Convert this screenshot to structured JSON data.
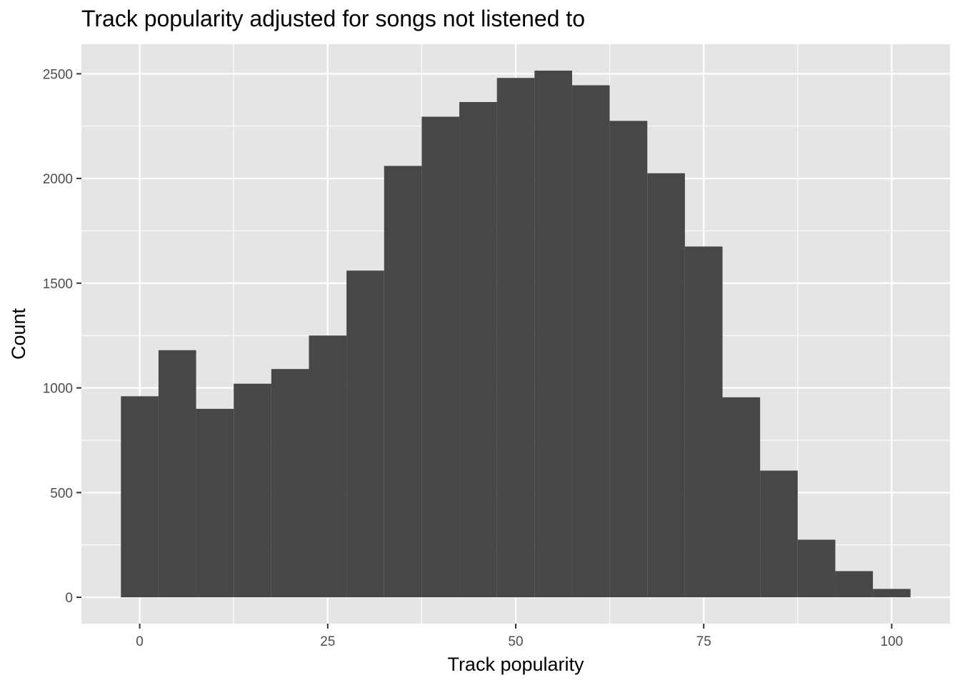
{
  "chart_data": {
    "type": "bar",
    "subtype": "histogram",
    "title": "Track popularity adjusted for songs not listened to",
    "xlabel": "Track popularity",
    "ylabel": "Count",
    "bin_width": 5,
    "bins": [
      {
        "x0": -2.5,
        "x1": 2.5,
        "count": 960
      },
      {
        "x0": 2.5,
        "x1": 7.5,
        "count": 1180
      },
      {
        "x0": 7.5,
        "x1": 12.5,
        "count": 900
      },
      {
        "x0": 12.5,
        "x1": 17.5,
        "count": 1020
      },
      {
        "x0": 17.5,
        "x1": 22.5,
        "count": 1090
      },
      {
        "x0": 22.5,
        "x1": 27.5,
        "count": 1250
      },
      {
        "x0": 27.5,
        "x1": 32.5,
        "count": 1560
      },
      {
        "x0": 32.5,
        "x1": 37.5,
        "count": 2060
      },
      {
        "x0": 37.5,
        "x1": 42.5,
        "count": 2295
      },
      {
        "x0": 42.5,
        "x1": 47.5,
        "count": 2365
      },
      {
        "x0": 47.5,
        "x1": 52.5,
        "count": 2480
      },
      {
        "x0": 52.5,
        "x1": 57.5,
        "count": 2515
      },
      {
        "x0": 57.5,
        "x1": 62.5,
        "count": 2445
      },
      {
        "x0": 62.5,
        "x1": 67.5,
        "count": 2275
      },
      {
        "x0": 67.5,
        "x1": 72.5,
        "count": 2025
      },
      {
        "x0": 72.5,
        "x1": 77.5,
        "count": 1675
      },
      {
        "x0": 77.5,
        "x1": 82.5,
        "count": 955
      },
      {
        "x0": 82.5,
        "x1": 87.5,
        "count": 605
      },
      {
        "x0": 87.5,
        "x1": 92.5,
        "count": 275
      },
      {
        "x0": 92.5,
        "x1": 97.5,
        "count": 125
      },
      {
        "x0": 97.5,
        "x1": 102.5,
        "count": 40
      }
    ],
    "x_ticks": [
      0,
      25,
      50,
      75,
      100
    ],
    "y_ticks": [
      0,
      500,
      1000,
      1500,
      2000,
      2500
    ],
    "xlim": [
      -7.75,
      107.75
    ],
    "ylim": [
      -125.75,
      2641
    ],
    "grid": true,
    "legend": "none",
    "colors": {
      "bar": "#474747",
      "panel": "#e5e5e5",
      "grid": "#ffffff"
    }
  }
}
